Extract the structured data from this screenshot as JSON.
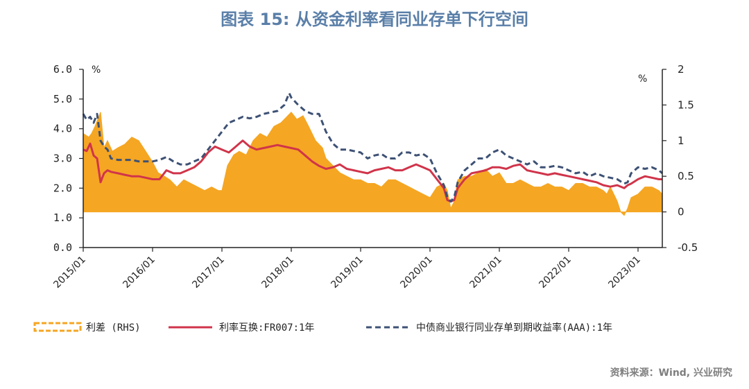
{
  "title": "图表 15: 从资金利率看同业存单下行空间",
  "source": "资料来源：Wind, 兴业研究",
  "chart_data": {
    "type": "line",
    "left_axis": {
      "unit": "%",
      "ylim": [
        0,
        6
      ],
      "ticks": [
        "0.0",
        "1.0",
        "2.0",
        "3.0",
        "4.0",
        "5.0",
        "6.0"
      ]
    },
    "right_axis": {
      "unit": "%",
      "ylim": [
        -0.5,
        2
      ],
      "ticks": [
        "-0.5",
        "0",
        "0.5",
        "1",
        "1.5",
        "2"
      ]
    },
    "x_ticks": [
      "2015/01",
      "2016/01",
      "2017/01",
      "2018/01",
      "2019/01",
      "2020/01",
      "2021/01",
      "2022/01",
      "2023/01"
    ],
    "x_range": [
      2015.0,
      2023.35
    ],
    "colors": {
      "spread": "#f5a623",
      "fr007": "#d0344a",
      "ncd": "#3d5174",
      "title": "#5a7fa8"
    },
    "series": [
      {
        "name": "利差（RHS）",
        "axis": "right",
        "style": "area",
        "x": [
          2015.0,
          2015.08,
          2015.12,
          2015.17,
          2015.25,
          2015.3,
          2015.35,
          2015.42,
          2015.5,
          2015.6,
          2015.7,
          2015.8,
          2015.9,
          2016.0,
          2016.08,
          2016.17,
          2016.25,
          2016.35,
          2016.45,
          2016.55,
          2016.65,
          2016.75,
          2016.85,
          2016.95,
          2017.0,
          2017.08,
          2017.17,
          2017.25,
          2017.35,
          2017.45,
          2017.55,
          2017.65,
          2017.75,
          2017.85,
          2017.95,
          2018.0,
          2018.08,
          2018.17,
          2018.25,
          2018.35,
          2018.45,
          2018.5,
          2018.6,
          2018.7,
          2018.8,
          2018.9,
          2019.0,
          2019.1,
          2019.2,
          2019.3,
          2019.4,
          2019.5,
          2019.6,
          2019.7,
          2019.8,
          2019.9,
          2020.0,
          2020.1,
          2020.2,
          2020.25,
          2020.3,
          2020.35,
          2020.4,
          2020.5,
          2020.6,
          2020.7,
          2020.8,
          2020.9,
          2021.0,
          2021.1,
          2021.2,
          2021.3,
          2021.4,
          2021.5,
          2021.6,
          2021.7,
          2021.8,
          2021.9,
          2022.0,
          2022.1,
          2022.2,
          2022.3,
          2022.4,
          2022.5,
          2022.55,
          2022.6,
          2022.65,
          2022.7,
          2022.75,
          2022.8,
          2022.85,
          2022.9,
          2023.0,
          2023.1,
          2023.2,
          2023.3,
          2023.35
        ],
        "values": [
          1.1,
          1.05,
          1.1,
          1.2,
          1.4,
          0.9,
          1.0,
          0.85,
          0.9,
          0.95,
          1.05,
          1.0,
          0.85,
          0.7,
          0.55,
          0.5,
          0.45,
          0.35,
          0.45,
          0.4,
          0.35,
          0.3,
          0.35,
          0.3,
          0.3,
          0.65,
          0.8,
          0.85,
          0.8,
          1.0,
          1.1,
          1.05,
          1.2,
          1.25,
          1.35,
          1.4,
          1.3,
          1.35,
          1.2,
          1.0,
          0.9,
          0.75,
          0.65,
          0.55,
          0.5,
          0.45,
          0.45,
          0.4,
          0.4,
          0.35,
          0.45,
          0.45,
          0.4,
          0.35,
          0.3,
          0.25,
          0.2,
          0.35,
          0.4,
          0.3,
          0.05,
          0.15,
          0.45,
          0.5,
          0.5,
          0.55,
          0.6,
          0.5,
          0.55,
          0.4,
          0.4,
          0.45,
          0.4,
          0.35,
          0.35,
          0.4,
          0.35,
          0.35,
          0.3,
          0.4,
          0.4,
          0.35,
          0.35,
          0.3,
          0.25,
          0.35,
          0.25,
          0.15,
          0.0,
          -0.05,
          0.05,
          0.2,
          0.25,
          0.35,
          0.35,
          0.3,
          0.25
        ]
      },
      {
        "name": "利率互换:FR007:1年",
        "axis": "left",
        "style": "line",
        "x": [
          2015.0,
          2015.05,
          2015.1,
          2015.15,
          2015.2,
          2015.25,
          2015.3,
          2015.35,
          2015.4,
          2015.5,
          2015.6,
          2015.7,
          2015.8,
          2015.9,
          2016.0,
          2016.1,
          2016.2,
          2016.3,
          2016.4,
          2016.5,
          2016.6,
          2016.7,
          2016.8,
          2016.9,
          2017.0,
          2017.1,
          2017.2,
          2017.3,
          2017.4,
          2017.5,
          2017.6,
          2017.7,
          2017.8,
          2017.9,
          2018.0,
          2018.1,
          2018.2,
          2018.3,
          2018.4,
          2018.5,
          2018.6,
          2018.7,
          2018.8,
          2018.9,
          2019.0,
          2019.1,
          2019.2,
          2019.3,
          2019.4,
          2019.5,
          2019.6,
          2019.7,
          2019.8,
          2019.9,
          2020.0,
          2020.1,
          2020.2,
          2020.25,
          2020.3,
          2020.35,
          2020.4,
          2020.5,
          2020.6,
          2020.7,
          2020.8,
          2020.9,
          2021.0,
          2021.1,
          2021.2,
          2021.3,
          2021.4,
          2021.5,
          2021.6,
          2021.7,
          2021.8,
          2021.9,
          2022.0,
          2022.1,
          2022.2,
          2022.3,
          2022.4,
          2022.5,
          2022.6,
          2022.7,
          2022.8,
          2022.85,
          2022.9,
          2023.0,
          2023.1,
          2023.2,
          2023.3,
          2023.35
        ],
        "values": [
          3.3,
          3.25,
          3.5,
          3.1,
          3.0,
          2.2,
          2.5,
          2.6,
          2.55,
          2.5,
          2.45,
          2.4,
          2.4,
          2.35,
          2.3,
          2.3,
          2.6,
          2.5,
          2.5,
          2.6,
          2.7,
          2.9,
          3.2,
          3.4,
          3.3,
          3.2,
          3.4,
          3.6,
          3.4,
          3.3,
          3.35,
          3.4,
          3.45,
          3.4,
          3.35,
          3.3,
          3.1,
          2.9,
          2.75,
          2.65,
          2.7,
          2.8,
          2.65,
          2.6,
          2.55,
          2.5,
          2.6,
          2.65,
          2.7,
          2.6,
          2.6,
          2.7,
          2.8,
          2.7,
          2.6,
          2.3,
          2.0,
          1.6,
          1.55,
          1.6,
          2.0,
          2.3,
          2.5,
          2.55,
          2.6,
          2.7,
          2.7,
          2.65,
          2.75,
          2.8,
          2.6,
          2.55,
          2.5,
          2.45,
          2.5,
          2.45,
          2.4,
          2.35,
          2.3,
          2.25,
          2.2,
          2.1,
          2.05,
          2.1,
          2.0,
          2.1,
          2.15,
          2.3,
          2.4,
          2.35,
          2.3,
          2.3
        ]
      },
      {
        "name": "中债商业银行同业存单到期收益率(AAA):1年",
        "axis": "left",
        "style": "dashed",
        "x": [
          2015.0,
          2015.05,
          2015.1,
          2015.15,
          2015.2,
          2015.25,
          2015.3,
          2015.35,
          2015.4,
          2015.5,
          2015.6,
          2015.7,
          2015.8,
          2015.9,
          2016.0,
          2016.1,
          2016.2,
          2016.3,
          2016.4,
          2016.5,
          2016.6,
          2016.7,
          2016.8,
          2016.9,
          2017.0,
          2017.1,
          2017.2,
          2017.3,
          2017.4,
          2017.5,
          2017.6,
          2017.7,
          2017.8,
          2017.9,
          2017.97,
          2018.0,
          2018.1,
          2018.2,
          2018.3,
          2018.4,
          2018.5,
          2018.6,
          2018.7,
          2018.8,
          2018.9,
          2019.0,
          2019.1,
          2019.2,
          2019.3,
          2019.4,
          2019.5,
          2019.6,
          2019.7,
          2019.8,
          2019.9,
          2020.0,
          2020.1,
          2020.2,
          2020.25,
          2020.3,
          2020.35,
          2020.4,
          2020.5,
          2020.6,
          2020.7,
          2020.8,
          2020.9,
          2021.0,
          2021.1,
          2021.2,
          2021.3,
          2021.4,
          2021.5,
          2021.6,
          2021.7,
          2021.8,
          2021.9,
          2022.0,
          2022.1,
          2022.2,
          2022.3,
          2022.4,
          2022.5,
          2022.6,
          2022.7,
          2022.8,
          2022.85,
          2022.9,
          2023.0,
          2023.1,
          2023.2,
          2023.3,
          2023.35
        ],
        "values": [
          4.5,
          4.3,
          4.4,
          4.2,
          4.5,
          3.6,
          3.4,
          3.3,
          3.0,
          2.95,
          2.95,
          2.95,
          2.9,
          2.9,
          2.9,
          2.95,
          3.05,
          2.9,
          2.8,
          2.8,
          2.9,
          3.0,
          3.3,
          3.6,
          3.9,
          4.2,
          4.3,
          4.4,
          4.35,
          4.4,
          4.5,
          4.55,
          4.6,
          4.8,
          5.2,
          5.05,
          4.8,
          4.6,
          4.5,
          4.5,
          3.9,
          3.5,
          3.3,
          3.3,
          3.25,
          3.2,
          3.0,
          3.1,
          3.15,
          3.0,
          3.0,
          3.2,
          3.2,
          3.1,
          3.15,
          3.0,
          2.5,
          2.1,
          1.7,
          1.55,
          1.7,
          2.2,
          2.6,
          2.8,
          3.0,
          3.0,
          3.2,
          3.3,
          3.1,
          3.0,
          2.9,
          2.8,
          2.9,
          2.7,
          2.7,
          2.75,
          2.7,
          2.6,
          2.5,
          2.55,
          2.4,
          2.5,
          2.4,
          2.35,
          2.3,
          2.15,
          2.2,
          2.5,
          2.7,
          2.65,
          2.7,
          2.6,
          2.5
        ]
      }
    ],
    "legend": [
      "利差 (RHS)",
      "利率互换:FR007:1年",
      "中债商业银行同业存单到期收益率(AAA):1年"
    ]
  }
}
